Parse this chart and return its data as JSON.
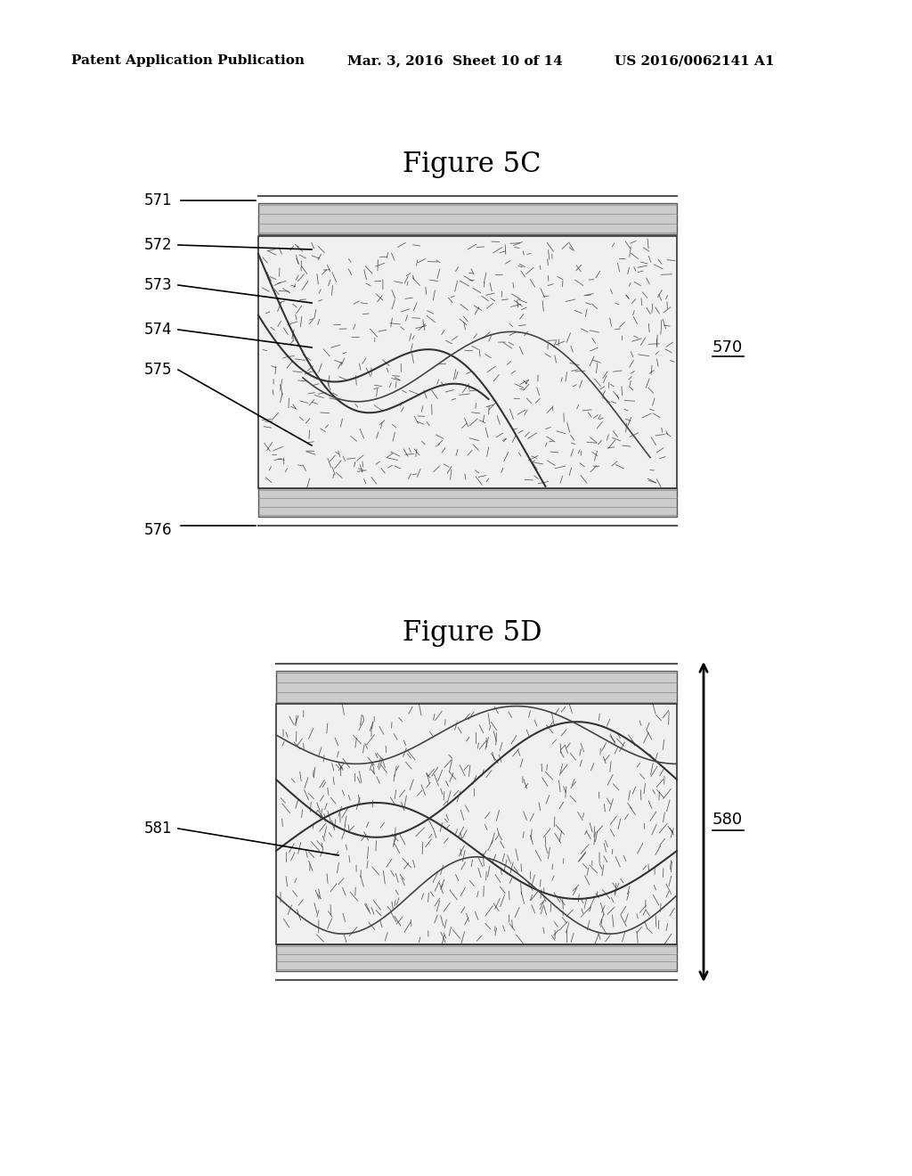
{
  "header_left": "Patent Application Publication",
  "header_mid": "Mar. 3, 2016  Sheet 10 of 14",
  "header_right": "US 2016/0062141 A1",
  "fig5c_title": "Figure 5C",
  "fig5d_title": "Figure 5D",
  "label_571": "571",
  "label_572": "572",
  "label_573": "573",
  "label_574": "574",
  "label_575": "575",
  "label_576": "576",
  "label_570": "570",
  "label_581": "581",
  "label_580": "580",
  "bg_color": "#ffffff",
  "line_color": "#000000",
  "gray_light": "#aaaaaa",
  "gray_dark": "#555555"
}
